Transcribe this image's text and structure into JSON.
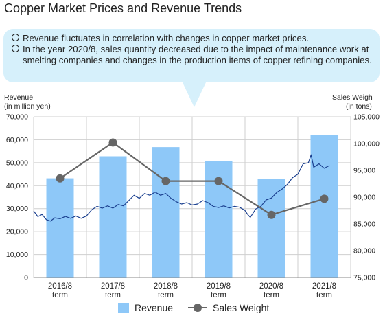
{
  "title": "Copper Market Prices and Revenue Trends",
  "notes": [
    "Revenue fluctuates in correlation with changes in copper market prices.",
    "In the year 2020/8, sales quantity decreased due to the impact of maintenance work at smelting companies and changes in the production items of copper refining companies."
  ],
  "chart_data": {
    "type": "bar",
    "categories": [
      "2016/8 term",
      "2017/8 term",
      "2018/8 term",
      "2019/8 term",
      "2020/8 term",
      "2021/8 term"
    ],
    "y_left": {
      "label_line1": "Revenue",
      "label_line2": "(in million yen)",
      "range": [
        0,
        70000
      ],
      "ticks": [
        "0",
        "10,000",
        "20,000",
        "30,000",
        "40,000",
        "50,000",
        "60,000",
        "70,000"
      ]
    },
    "y_right": {
      "label_line1": "Sales Weigh",
      "label_line2": "(in tons)",
      "range": [
        75000,
        105000
      ],
      "ticks": [
        "75,000",
        "80,000",
        "85,000",
        "90,000",
        "95,000",
        "100,000",
        "105,000"
      ]
    },
    "grid": true,
    "legend_position": "bottom",
    "series": [
      {
        "name": "Revenue",
        "type": "bar",
        "axis": "left",
        "color": "#8ec8f8",
        "values": [
          43200,
          52800,
          56800,
          50700,
          42800,
          62200
        ]
      },
      {
        "name": "Sales Weight",
        "type": "line",
        "axis": "right",
        "color": "#666666",
        "values": [
          93500,
          100200,
          93000,
          93000,
          86700,
          89700
        ]
      }
    ],
    "copper_price_trace": {
      "color": "#1a3f8f",
      "axis": "left",
      "x_range": [
        0,
        6
      ],
      "points": [
        [
          0.0,
          29000
        ],
        [
          0.08,
          26500
        ],
        [
          0.16,
          27500
        ],
        [
          0.24,
          25200
        ],
        [
          0.32,
          24600
        ],
        [
          0.4,
          26000
        ],
        [
          0.5,
          25600
        ],
        [
          0.6,
          26600
        ],
        [
          0.7,
          25800
        ],
        [
          0.8,
          26800
        ],
        [
          0.9,
          25800
        ],
        [
          1.0,
          26800
        ],
        [
          1.1,
          29500
        ],
        [
          1.2,
          31000
        ],
        [
          1.3,
          30200
        ],
        [
          1.4,
          31200
        ],
        [
          1.5,
          30200
        ],
        [
          1.6,
          31800
        ],
        [
          1.7,
          31200
        ],
        [
          1.8,
          33500
        ],
        [
          1.9,
          35800
        ],
        [
          2.0,
          34500
        ],
        [
          2.1,
          36600
        ],
        [
          2.2,
          35800
        ],
        [
          2.3,
          37200
        ],
        [
          2.4,
          35800
        ],
        [
          2.5,
          36600
        ],
        [
          2.6,
          34500
        ],
        [
          2.7,
          33000
        ],
        [
          2.8,
          32000
        ],
        [
          2.9,
          32600
        ],
        [
          3.0,
          31600
        ],
        [
          3.1,
          32000
        ],
        [
          3.2,
          33500
        ],
        [
          3.3,
          32600
        ],
        [
          3.4,
          31000
        ],
        [
          3.5,
          30500
        ],
        [
          3.6,
          31200
        ],
        [
          3.7,
          30300
        ],
        [
          3.8,
          31000
        ],
        [
          3.9,
          30600
        ],
        [
          4.0,
          29200
        ],
        [
          4.05,
          27500
        ],
        [
          4.1,
          26200
        ],
        [
          4.15,
          28000
        ],
        [
          4.2,
          29800
        ],
        [
          4.3,
          31000
        ],
        [
          4.4,
          33800
        ],
        [
          4.5,
          34600
        ],
        [
          4.6,
          37000
        ],
        [
          4.7,
          38500
        ],
        [
          4.8,
          40500
        ],
        [
          4.9,
          43500
        ],
        [
          5.0,
          45000
        ],
        [
          5.1,
          49500
        ],
        [
          5.2,
          50000
        ],
        [
          5.25,
          53500
        ],
        [
          5.3,
          48000
        ],
        [
          5.4,
          49500
        ],
        [
          5.5,
          47600
        ],
        [
          5.6,
          48800
        ]
      ]
    }
  },
  "legend": {
    "bar_label": "Revenue",
    "line_label": "Sales Weight"
  }
}
